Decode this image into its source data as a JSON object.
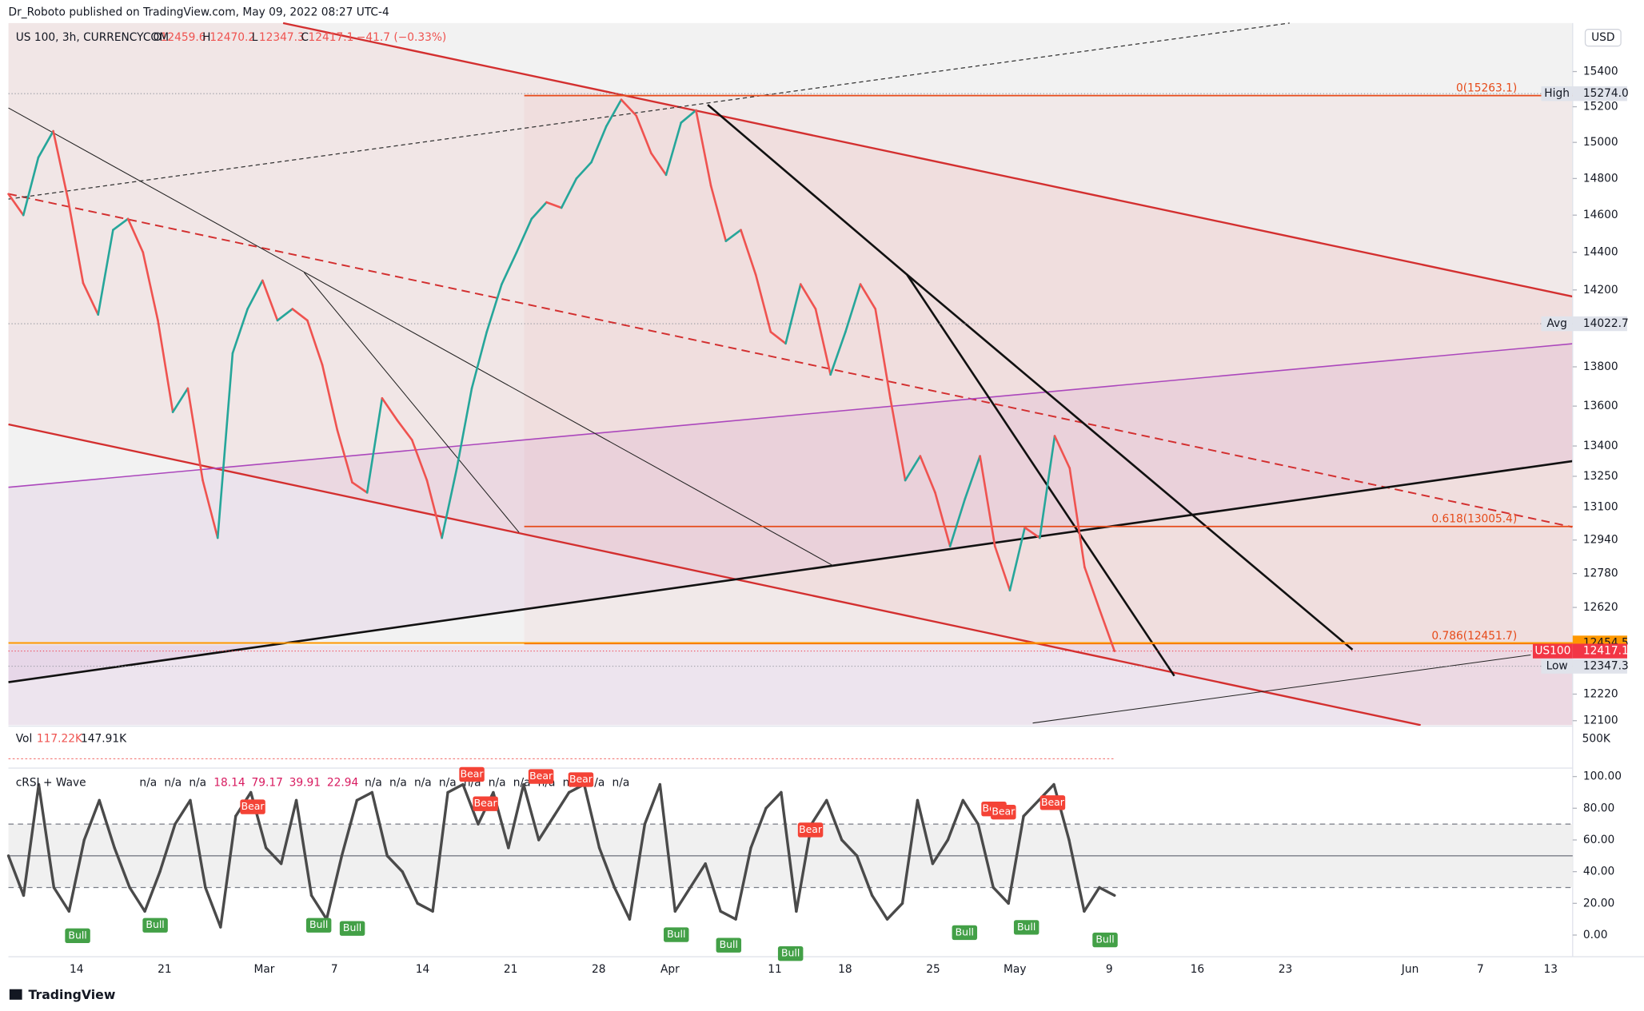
{
  "header": "Dr_Roboto published on TradingView.com, May 09, 2022 08:27 UTC-4",
  "footer": "TradingView",
  "volume": {
    "title": "Vol",
    "readout": [
      "117.22K",
      "147.91K"
    ],
    "axis_label": "500K"
  },
  "chart_data": [
    {
      "type": "line",
      "title": "US 100, 3h, CURRENCYCOM",
      "ohlc": [
        {
          "key": "O",
          "text": "12459.6"
        },
        {
          "key": "H",
          "text": "12470.2"
        },
        {
          "key": "L",
          "text": "12347.3"
        },
        {
          "key": "C",
          "text": "12417.1"
        }
      ],
      "change": "−41.7 (−0.33%)",
      "currency": "USD",
      "log_scale": true,
      "grid": false,
      "ylim": [
        12080,
        15680
      ],
      "yticks": [
        15400,
        15200,
        15000,
        14800,
        14600,
        14400,
        14200,
        13800,
        13600,
        13400,
        13250,
        13100,
        12940,
        12780,
        12620,
        12220,
        12100
      ],
      "xticks": [
        "14",
        "21",
        "Mar",
        "7",
        "14",
        "21",
        "28",
        "Apr",
        "11",
        "18",
        "25",
        "May",
        "9",
        "16",
        "23",
        "Jun",
        "7",
        "13"
      ],
      "series": [
        {
          "name": "US100",
          "color": "#26a69a",
          "down_color": "#ef5350",
          "label_color": "#f23645",
          "values": [
            14715,
            14600,
            14916,
            15063,
            14680,
            14236,
            14070,
            14520,
            14580,
            14400,
            14040,
            13570,
            13690,
            13230,
            12950,
            13870,
            14100,
            14250,
            14040,
            14100,
            14040,
            13810,
            13480,
            13220,
            13170,
            13640,
            13530,
            13430,
            13230,
            12950,
            13290,
            13690,
            13980,
            14230,
            14400,
            14580,
            14670,
            14640,
            14800,
            14890,
            15090,
            15240,
            15150,
            14940,
            14820,
            15110,
            15180,
            14760,
            14460,
            14520,
            14280,
            13980,
            13920,
            14230,
            14100,
            13760,
            13980,
            14230,
            14100,
            13640,
            13230,
            13350,
            13170,
            12910,
            13140,
            13350,
            12910,
            12700,
            13000,
            12950,
            13450,
            13290,
            12810,
            12610,
            12417.1
          ]
        }
      ],
      "price_labels": [
        {
          "name": "High",
          "value": 15274,
          "label": "15274.0",
          "color": "#e0e3eb",
          "line": "dotted"
        },
        {
          "name": "Avg",
          "value": 14022.7,
          "label": "14022.7",
          "color": "#e0e3eb",
          "line": "dotted"
        },
        {
          "name": "Low",
          "value": 12347.3,
          "label": "12347.3",
          "color": "#e0e3eb",
          "line": "dotted"
        },
        {
          "value": 12454.5,
          "label": "12454.5",
          "color": "#ff9800",
          "line": "solid"
        }
      ],
      "fib_levels": [
        {
          "label": "0(15263.1)",
          "value": 15263.1
        },
        {
          "label": "0.618(13005.4)",
          "value": 13005.4
        },
        {
          "label": "0.786(12451.7)",
          "value": 12451.7
        }
      ],
      "fib_color": "#e64a19"
    },
    {
      "type": "line",
      "title": "cRSI + Wave",
      "readout": [
        "n/a",
        "n/a",
        "n/a",
        "18.14",
        "79.17",
        "39.91",
        "22.94",
        "n/a",
        "n/a",
        "n/a",
        "n/a",
        "n/a",
        "n/a",
        "n/a",
        "n/a",
        "n/a",
        "n/a",
        "n/a"
      ],
      "ylim": [
        -13,
        104
      ],
      "yticks": [
        {
          "value": 100,
          "label": "100.00"
        },
        {
          "value": 80,
          "label": "80.00"
        },
        {
          "value": 60,
          "label": "60.00"
        },
        {
          "value": 40,
          "label": "40.00"
        },
        {
          "value": 20,
          "label": "20.00"
        },
        {
          "value": 0,
          "label": "0.00"
        }
      ],
      "bands": [
        70,
        30
      ],
      "mid": 50,
      "series": [
        {
          "color": "#4a4a4a",
          "values": [
            50,
            25,
            95,
            30,
            15,
            60,
            85,
            55,
            30,
            15,
            40,
            70,
            85,
            30,
            5,
            75,
            90,
            55,
            45,
            85,
            25,
            10,
            50,
            85,
            90,
            50,
            40,
            20,
            15,
            90,
            95,
            70,
            90,
            55,
            95,
            60,
            75,
            90,
            95,
            55,
            30,
            10,
            70,
            95,
            15,
            30,
            45,
            15,
            10,
            55,
            80,
            90,
            15,
            70,
            85,
            60,
            50,
            25,
            10,
            20,
            85,
            45,
            60,
            85,
            70,
            30,
            20,
            75,
            85,
            95,
            60,
            15,
            30,
            25
          ]
        }
      ],
      "tags": [
        "Bull",
        "Bull",
        "Bull",
        "Bull",
        "Bull",
        "Bull",
        "Bull",
        "Bull",
        "Bull",
        "Bull",
        "Bear",
        "Bear",
        "Bear",
        "Bear",
        "Bear",
        "Bear",
        "Bear",
        "Bear",
        "Bear"
      ],
      "tag_colors": {
        "Bull": "#43a047",
        "Bear": "#f44336"
      }
    }
  ]
}
